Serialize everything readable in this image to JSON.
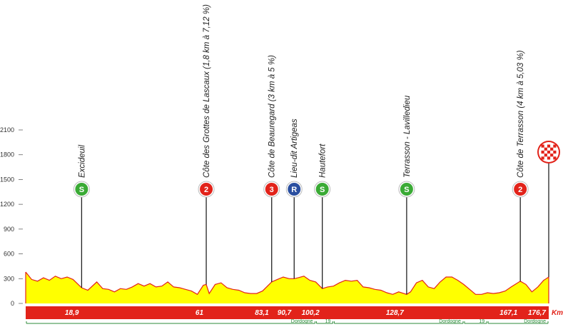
{
  "chart_data": {
    "type": "area",
    "title": "",
    "xlabel": "",
    "ylabel": "",
    "x_unit": "Km",
    "xlim": [
      0,
      176.7
    ],
    "ylim": [
      0,
      2100
    ],
    "yticks": [
      0,
      300,
      600,
      900,
      1200,
      1500,
      1800,
      2100
    ],
    "colors": {
      "profile_fill": "#ffff00",
      "profile_line": "#e2231a",
      "distance_bar": "#e2231a",
      "sprint_badge": "#3aaa35",
      "climb_badge": "#e2231a",
      "refuel_badge": "#2a4fa0",
      "border_line": "#2e8b3a"
    },
    "profile": {
      "x": [
        0,
        2,
        4,
        6,
        8,
        10,
        12,
        14,
        16,
        18.9,
        21,
        24,
        26,
        28,
        30,
        32,
        34,
        36,
        38,
        40,
        42,
        44,
        46,
        48,
        50,
        52,
        54,
        56,
        58,
        60,
        61,
        62,
        64,
        66,
        68,
        70,
        72,
        74,
        76,
        78,
        80,
        83.1,
        85,
        87,
        89,
        90.7,
        92,
        94,
        96,
        98,
        100.2,
        102,
        104,
        106,
        108,
        110,
        112,
        114,
        116,
        118,
        120,
        122,
        124,
        126,
        128.7,
        130,
        132,
        134,
        136,
        138,
        140,
        142,
        144,
        146,
        148,
        150,
        152,
        154,
        156,
        158,
        160,
        162,
        164,
        167.1,
        169,
        171,
        173,
        175,
        176.7
      ],
      "elev": [
        380,
        290,
        270,
        310,
        280,
        330,
        300,
        320,
        290,
        190,
        160,
        260,
        180,
        170,
        140,
        180,
        170,
        200,
        240,
        210,
        240,
        200,
        210,
        260,
        200,
        190,
        170,
        150,
        110,
        220,
        230,
        120,
        230,
        250,
        190,
        170,
        160,
        130,
        120,
        120,
        150,
        260,
        290,
        320,
        300,
        300,
        310,
        330,
        280,
        260,
        180,
        200,
        210,
        250,
        280,
        270,
        280,
        200,
        190,
        170,
        160,
        130,
        110,
        140,
        110,
        140,
        250,
        280,
        200,
        180,
        260,
        320,
        320,
        280,
        230,
        170,
        110,
        110,
        130,
        120,
        130,
        150,
        200,
        270,
        230,
        140,
        200,
        280,
        320
      ]
    },
    "points": [
      {
        "km": 18.9,
        "km_label": "18,9",
        "name": "Excideuil",
        "badge": "S",
        "type": "sprint"
      },
      {
        "km": 61,
        "km_label": "61",
        "name": "Côte des Grottes de Lascaux (1,8 km à 7,12 %)",
        "badge": "2",
        "type": "climb"
      },
      {
        "km": 83.1,
        "km_label": "83,1",
        "name": "Côte de Beauregard (3 km à 5 %)",
        "badge": "3",
        "type": "climb"
      },
      {
        "km": 90.7,
        "km_label": "90,7",
        "name": "Lieu-dit Artigeas",
        "badge": "R",
        "type": "refuel"
      },
      {
        "km": 100.2,
        "km_label": "100,2",
        "name": "Hautefort",
        "badge": "S",
        "type": "sprint"
      },
      {
        "km": 128.7,
        "km_label": "128,7",
        "name": "Terrasson - Lavilledieu",
        "badge": "S",
        "type": "sprint"
      },
      {
        "km": 167.1,
        "km_label": "167,1",
        "name": "Côte de Terrasson (4 km à 5,03 %)",
        "badge": "2",
        "type": "climb"
      },
      {
        "km": 176.7,
        "km_label": "176,7",
        "name": "",
        "badge": "finish",
        "type": "finish"
      }
    ],
    "departments": [
      {
        "name": "Dordogne",
        "from": 0,
        "to": 98
      },
      {
        "name": "19",
        "from": 98,
        "to": 104
      },
      {
        "name": "Dordogne",
        "from": 104,
        "to": 148
      },
      {
        "name": "19",
        "from": 148,
        "to": 156
      },
      {
        "name": "Dordogne",
        "from": 156,
        "to": 176.7
      }
    ]
  }
}
